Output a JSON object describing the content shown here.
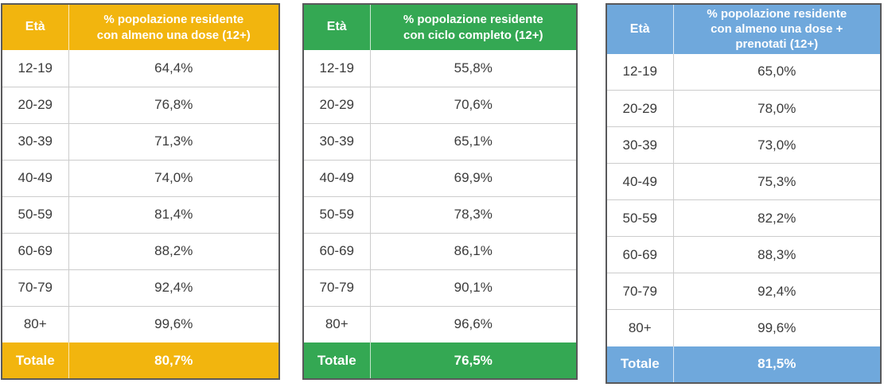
{
  "page": {
    "background": "#ffffff"
  },
  "colors": {
    "yellow_accent": "#F2B50E",
    "green_accent": "#34A853",
    "blue_accent": "#6FA8DC",
    "body_text": "#3b3b3b",
    "outer_border": "#59595b",
    "inner_border": "#cccccc"
  },
  "tables": [
    {
      "accent": "#F2B50E",
      "age_header": "Età",
      "value_header": "% popolazione residente\ncon almeno una dose (12+)",
      "rows": [
        {
          "age": "12-19",
          "value": "64,4%"
        },
        {
          "age": "20-29",
          "value": "76,8%"
        },
        {
          "age": "30-39",
          "value": "71,3%"
        },
        {
          "age": "40-49",
          "value": "74,0%"
        },
        {
          "age": "50-59",
          "value": "81,4%"
        },
        {
          "age": "60-69",
          "value": "88,2%"
        },
        {
          "age": "70-79",
          "value": "92,4%"
        },
        {
          "age": "80+",
          "value": "99,6%"
        }
      ],
      "total_label": "Totale",
      "total_value": "80,7%"
    },
    {
      "accent": "#34A853",
      "age_header": "Età",
      "value_header": "% popolazione residente\ncon ciclo completo (12+)",
      "rows": [
        {
          "age": "12-19",
          "value": "55,8%"
        },
        {
          "age": "20-29",
          "value": "70,6%"
        },
        {
          "age": "30-39",
          "value": "65,1%"
        },
        {
          "age": "40-49",
          "value": "69,9%"
        },
        {
          "age": "50-59",
          "value": "78,3%"
        },
        {
          "age": "60-69",
          "value": "86,1%"
        },
        {
          "age": "70-79",
          "value": "90,1%"
        },
        {
          "age": "80+",
          "value": "96,6%"
        }
      ],
      "total_label": "Totale",
      "total_value": "76,5%"
    },
    {
      "accent": "#6FA8DC",
      "age_header": "Età",
      "value_header": "% popolazione residente\ncon almeno una dose +\nprenotati (12+)",
      "rows": [
        {
          "age": "12-19",
          "value": "65,0%"
        },
        {
          "age": "20-29",
          "value": "78,0%"
        },
        {
          "age": "30-39",
          "value": "73,0%"
        },
        {
          "age": "40-49",
          "value": "75,3%"
        },
        {
          "age": "50-59",
          "value": "82,2%"
        },
        {
          "age": "60-69",
          "value": "88,3%"
        },
        {
          "age": "70-79",
          "value": "92,4%"
        },
        {
          "age": "80+",
          "value": "99,6%"
        }
      ],
      "total_label": "Totale",
      "total_value": "81,5%"
    }
  ],
  "chart_data": [
    {
      "type": "table",
      "title": "% popolazione residente con almeno una dose (12+)",
      "xlabel": "Età",
      "unit": "%",
      "categories": [
        "12-19",
        "20-29",
        "30-39",
        "40-49",
        "50-59",
        "60-69",
        "70-79",
        "80+"
      ],
      "values": [
        64.4,
        76.8,
        71.3,
        74.0,
        81.4,
        88.2,
        92.4,
        99.6
      ],
      "total": 80.7,
      "accent_color": "#F2B50E"
    },
    {
      "type": "table",
      "title": "% popolazione residente con ciclo completo (12+)",
      "xlabel": "Età",
      "unit": "%",
      "categories": [
        "12-19",
        "20-29",
        "30-39",
        "40-49",
        "50-59",
        "60-69",
        "70-79",
        "80+"
      ],
      "values": [
        55.8,
        70.6,
        65.1,
        69.9,
        78.3,
        86.1,
        90.1,
        96.6
      ],
      "total": 76.5,
      "accent_color": "#34A853"
    },
    {
      "type": "table",
      "title": "% popolazione residente con almeno una dose + prenotati (12+)",
      "xlabel": "Età",
      "unit": "%",
      "categories": [
        "12-19",
        "20-29",
        "30-39",
        "40-49",
        "50-59",
        "60-69",
        "70-79",
        "80+"
      ],
      "values": [
        65.0,
        78.0,
        73.0,
        75.3,
        82.2,
        88.3,
        92.4,
        99.6
      ],
      "total": 81.5,
      "accent_color": "#6FA8DC"
    }
  ]
}
